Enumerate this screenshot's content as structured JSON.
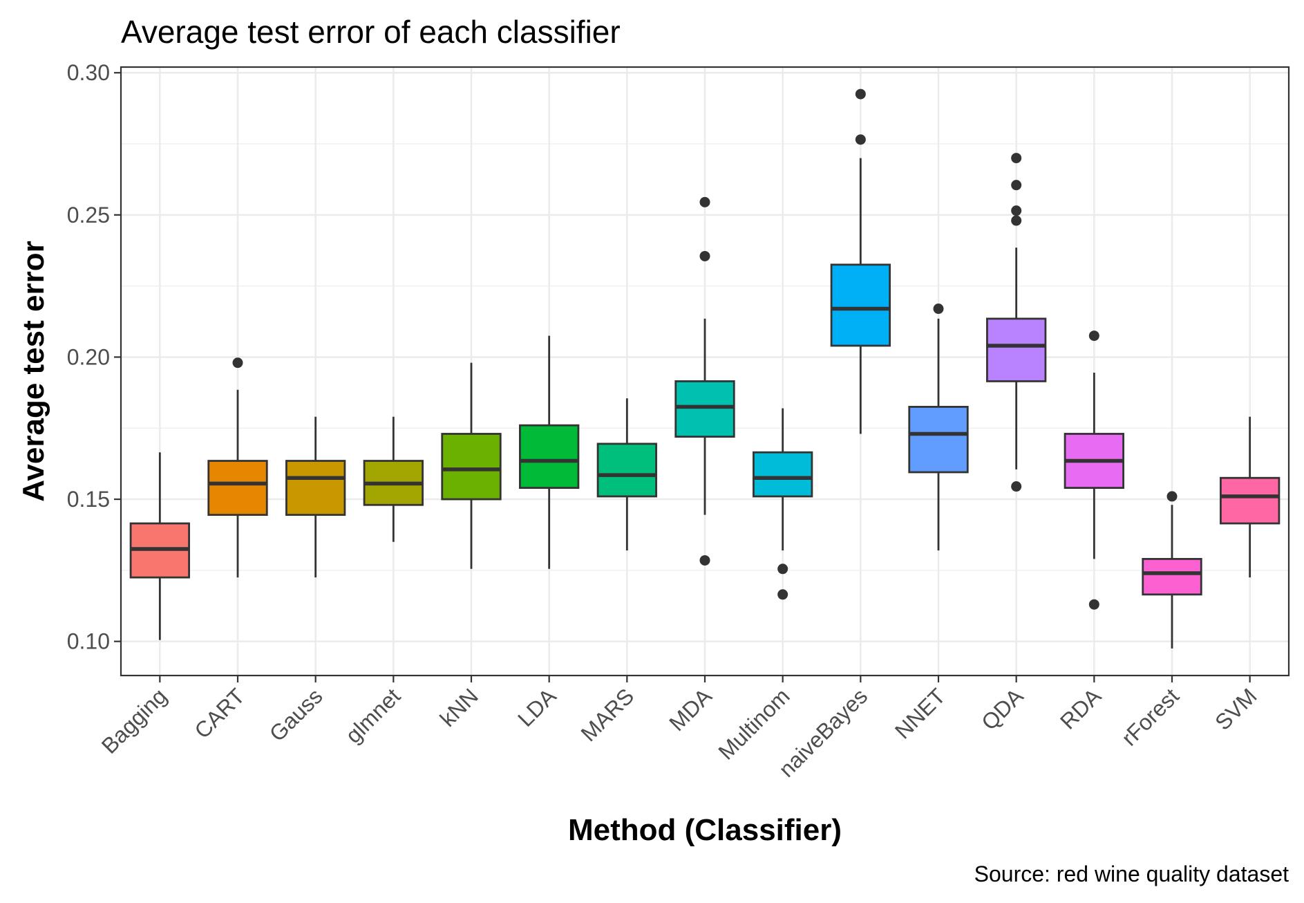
{
  "chart_data": {
    "type": "boxplot",
    "title": "Average test error of each classifier",
    "xlabel": "Method (Classifier)",
    "ylabel": "Average test error",
    "caption": "Source: red wine quality dataset",
    "ylim": [
      0.088,
      0.302
    ],
    "yticks": [
      "0.10",
      "0.15",
      "0.20",
      "0.25",
      "0.30"
    ],
    "grid": true,
    "legend": "none",
    "categories": [
      "Bagging",
      "CART",
      "Gauss",
      "glmnet",
      "kNN",
      "LDA",
      "MARS",
      "MDA",
      "Multinom",
      "naiveBayes",
      "NNET",
      "QDA",
      "RDA",
      "rForest",
      "SVM"
    ],
    "boxes": [
      {
        "name": "Bagging",
        "color": "#F8766D",
        "whisker_low": 0.1005,
        "q1": 0.1225,
        "median": 0.1325,
        "q3": 0.1415,
        "whisker_high": 0.1665,
        "outliers": []
      },
      {
        "name": "CART",
        "color": "#E58700",
        "whisker_low": 0.1225,
        "q1": 0.1445,
        "median": 0.1555,
        "q3": 0.1635,
        "whisker_high": 0.1885,
        "outliers": [
          0.198
        ]
      },
      {
        "name": "Gauss",
        "color": "#C99800",
        "whisker_low": 0.1225,
        "q1": 0.1445,
        "median": 0.1575,
        "q3": 0.1635,
        "whisker_high": 0.179,
        "outliers": []
      },
      {
        "name": "glmnet",
        "color": "#A3A500",
        "whisker_low": 0.135,
        "q1": 0.148,
        "median": 0.1555,
        "q3": 0.1635,
        "whisker_high": 0.179,
        "outliers": []
      },
      {
        "name": "kNN",
        "color": "#6BB100",
        "whisker_low": 0.1255,
        "q1": 0.15,
        "median": 0.1605,
        "q3": 0.173,
        "whisker_high": 0.198,
        "outliers": []
      },
      {
        "name": "LDA",
        "color": "#00BA38",
        "whisker_low": 0.1255,
        "q1": 0.154,
        "median": 0.1635,
        "q3": 0.176,
        "whisker_high": 0.2075,
        "outliers": []
      },
      {
        "name": "MARS",
        "color": "#00BF7D",
        "whisker_low": 0.132,
        "q1": 0.151,
        "median": 0.1585,
        "q3": 0.1695,
        "whisker_high": 0.1855,
        "outliers": []
      },
      {
        "name": "MDA",
        "color": "#00C0AF",
        "whisker_low": 0.1445,
        "q1": 0.172,
        "median": 0.1825,
        "q3": 0.1915,
        "whisker_high": 0.2135,
        "outliers": [
          0.1285,
          0.2355,
          0.2545
        ]
      },
      {
        "name": "Multinom",
        "color": "#00BCD8",
        "whisker_low": 0.132,
        "q1": 0.151,
        "median": 0.1575,
        "q3": 0.1665,
        "whisker_high": 0.182,
        "outliers": [
          0.1165,
          0.1255
        ]
      },
      {
        "name": "naiveBayes",
        "color": "#00B0F6",
        "whisker_low": 0.173,
        "q1": 0.204,
        "median": 0.217,
        "q3": 0.2325,
        "whisker_high": 0.27,
        "outliers": [
          0.2765,
          0.2925
        ]
      },
      {
        "name": "NNET",
        "color": "#619CFF",
        "whisker_low": 0.132,
        "q1": 0.1595,
        "median": 0.173,
        "q3": 0.1825,
        "whisker_high": 0.2135,
        "outliers": [
          0.217
        ]
      },
      {
        "name": "QDA",
        "color": "#B983FF",
        "whisker_low": 0.1605,
        "q1": 0.1915,
        "median": 0.204,
        "q3": 0.2135,
        "whisker_high": 0.2385,
        "outliers": [
          0.1545,
          0.248,
          0.2515,
          0.2605,
          0.27
        ]
      },
      {
        "name": "RDA",
        "color": "#E76BF3",
        "whisker_low": 0.129,
        "q1": 0.154,
        "median": 0.1635,
        "q3": 0.173,
        "whisker_high": 0.1945,
        "outliers": [
          0.113,
          0.2075
        ]
      },
      {
        "name": "rForest",
        "color": "#FD61D1",
        "whisker_low": 0.0975,
        "q1": 0.1165,
        "median": 0.124,
        "q3": 0.129,
        "whisker_high": 0.148,
        "outliers": [
          0.151
        ]
      },
      {
        "name": "SVM",
        "color": "#FF67A4",
        "whisker_low": 0.1225,
        "q1": 0.1415,
        "median": 0.151,
        "q3": 0.1575,
        "whisker_high": 0.179,
        "outliers": []
      }
    ]
  }
}
